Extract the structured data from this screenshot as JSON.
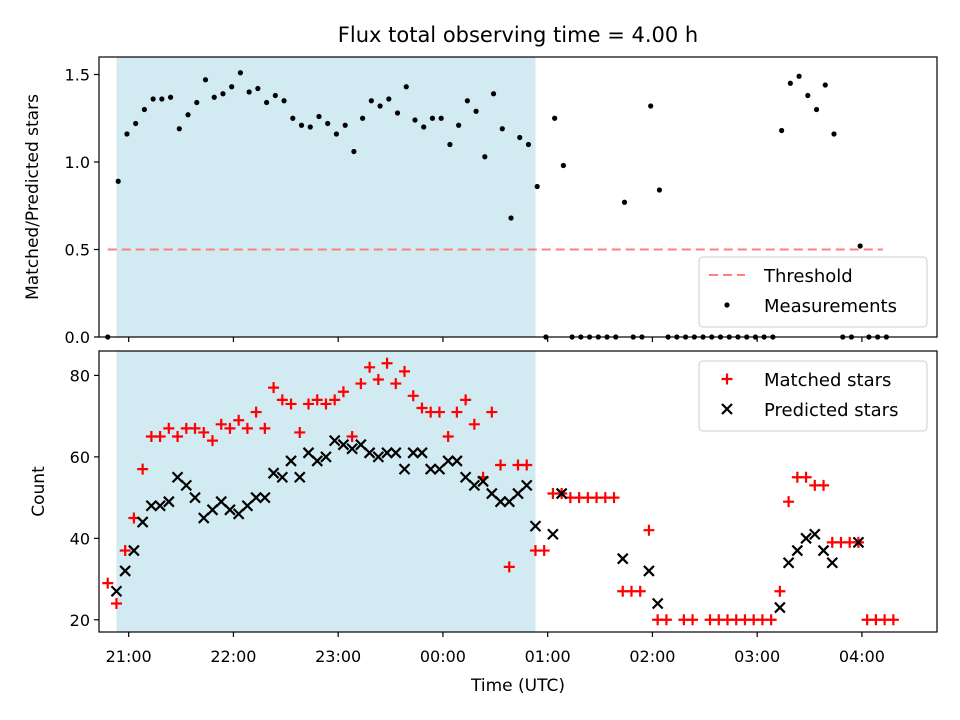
{
  "chart_data": [
    {
      "type": "scatter",
      "title": "Flux total observing time = 4.00 h",
      "xlabel": "",
      "ylabel": "Matched/Predicted stars",
      "ylim": [
        0,
        1.6
      ],
      "yticks": [
        "0.0",
        "0.5",
        "1.0",
        "1.5"
      ],
      "xlim": [
        "20:43",
        "04:43"
      ],
      "shaded_interval": [
        "20:53",
        "00:53"
      ],
      "shade_color": "#add8e6",
      "threshold": {
        "name": "Threshold",
        "value": 0.5,
        "color": "#ff7f7f",
        "x_start": "20:48",
        "x_end": "04:12"
      },
      "legend": {
        "location": "lower right",
        "entries": [
          "Threshold",
          "Measurements"
        ]
      },
      "series": [
        {
          "name": "Measurements",
          "marker": "dot",
          "color": "#000000",
          "points": [
            [
              "20:48",
              0.0
            ],
            [
              "20:54",
              0.89
            ],
            [
              "20:59",
              1.16
            ],
            [
              "21:04",
              1.22
            ],
            [
              "21:09",
              1.3
            ],
            [
              "21:14",
              1.36
            ],
            [
              "21:19",
              1.36
            ],
            [
              "21:24",
              1.37
            ],
            [
              "21:29",
              1.19
            ],
            [
              "21:34",
              1.27
            ],
            [
              "21:39",
              1.34
            ],
            [
              "21:44",
              1.47
            ],
            [
              "21:49",
              1.37
            ],
            [
              "21:54",
              1.39
            ],
            [
              "21:59",
              1.43
            ],
            [
              "22:04",
              1.51
            ],
            [
              "22:09",
              1.4
            ],
            [
              "22:14",
              1.42
            ],
            [
              "22:19",
              1.34
            ],
            [
              "22:24",
              1.38
            ],
            [
              "22:29",
              1.35
            ],
            [
              "22:34",
              1.25
            ],
            [
              "22:39",
              1.21
            ],
            [
              "22:44",
              1.2
            ],
            [
              "22:49",
              1.26
            ],
            [
              "22:54",
              1.22
            ],
            [
              "22:59",
              1.16
            ],
            [
              "23:04",
              1.21
            ],
            [
              "23:09",
              1.06
            ],
            [
              "23:14",
              1.25
            ],
            [
              "23:19",
              1.35
            ],
            [
              "23:24",
              1.32
            ],
            [
              "23:29",
              1.36
            ],
            [
              "23:34",
              1.28
            ],
            [
              "23:39",
              1.43
            ],
            [
              "23:44",
              1.24
            ],
            [
              "23:49",
              1.2
            ],
            [
              "23:54",
              1.25
            ],
            [
              "23:59",
              1.25
            ],
            [
              "00:04",
              1.1
            ],
            [
              "00:09",
              1.21
            ],
            [
              "00:14",
              1.35
            ],
            [
              "00:19",
              1.29
            ],
            [
              "00:24",
              1.03
            ],
            [
              "00:29",
              1.39
            ],
            [
              "00:34",
              1.19
            ],
            [
              "00:39",
              0.68
            ],
            [
              "00:44",
              1.14
            ],
            [
              "00:49",
              1.1
            ],
            [
              "00:54",
              0.86
            ],
            [
              "00:59",
              0.0
            ],
            [
              "01:04",
              1.25
            ],
            [
              "01:09",
              0.98
            ],
            [
              "01:14",
              0.0
            ],
            [
              "01:19",
              0.0
            ],
            [
              "01:24",
              0.0
            ],
            [
              "01:29",
              0.0
            ],
            [
              "01:34",
              0.0
            ],
            [
              "01:39",
              0.0
            ],
            [
              "01:44",
              0.77
            ],
            [
              "01:49",
              0.0
            ],
            [
              "01:54",
              0.0
            ],
            [
              "01:59",
              1.32
            ],
            [
              "02:04",
              0.84
            ],
            [
              "02:09",
              0.0
            ],
            [
              "02:14",
              0.0
            ],
            [
              "02:19",
              0.0
            ],
            [
              "02:24",
              0.0
            ],
            [
              "02:29",
              0.0
            ],
            [
              "02:34",
              0.0
            ],
            [
              "02:39",
              0.0
            ],
            [
              "02:44",
              0.0
            ],
            [
              "02:49",
              0.0
            ],
            [
              "02:54",
              0.0
            ],
            [
              "02:59",
              0.0
            ],
            [
              "03:04",
              0.0
            ],
            [
              "03:09",
              0.0
            ],
            [
              "03:14",
              1.18
            ],
            [
              "03:19",
              1.45
            ],
            [
              "03:24",
              1.49
            ],
            [
              "03:29",
              1.38
            ],
            [
              "03:34",
              1.3
            ],
            [
              "03:39",
              1.44
            ],
            [
              "03:44",
              1.16
            ],
            [
              "03:49",
              0.0
            ],
            [
              "03:54",
              0.0
            ],
            [
              "03:59",
              0.52
            ],
            [
              "04:04",
              0.0
            ],
            [
              "04:09",
              0.0
            ],
            [
              "04:14",
              0.0
            ]
          ]
        }
      ]
    },
    {
      "type": "scatter",
      "title": "",
      "xlabel": "Time (UTC)",
      "ylabel": "Count",
      "ylim": [
        17,
        86
      ],
      "yticks": [
        "20",
        "40",
        "60",
        "80"
      ],
      "xlim": [
        "20:43",
        "04:43"
      ],
      "xticks": [
        "21:00",
        "22:00",
        "23:00",
        "00:00",
        "01:00",
        "02:00",
        "03:00",
        "04:00"
      ],
      "shaded_interval": [
        "20:53",
        "00:53"
      ],
      "shade_color": "#add8e6",
      "legend": {
        "location": "upper right",
        "entries": [
          "Matched stars",
          "Predicted stars"
        ]
      },
      "series": [
        {
          "name": "Matched stars",
          "marker": "plus",
          "color": "#ff0000",
          "points": [
            [
              "20:48",
              29
            ],
            [
              "20:53",
              24
            ],
            [
              "20:58",
              37
            ],
            [
              "21:03",
              45
            ],
            [
              "21:08",
              57
            ],
            [
              "21:13",
              65
            ],
            [
              "21:18",
              65
            ],
            [
              "21:23",
              67
            ],
            [
              "21:28",
              65
            ],
            [
              "21:33",
              67
            ],
            [
              "21:38",
              67
            ],
            [
              "21:43",
              66
            ],
            [
              "21:48",
              64
            ],
            [
              "21:53",
              68
            ],
            [
              "21:58",
              67
            ],
            [
              "22:03",
              69
            ],
            [
              "22:08",
              67
            ],
            [
              "22:13",
              71
            ],
            [
              "22:18",
              67
            ],
            [
              "22:23",
              77
            ],
            [
              "22:28",
              74
            ],
            [
              "22:33",
              73
            ],
            [
              "22:38",
              66
            ],
            [
              "22:43",
              73
            ],
            [
              "22:48",
              74
            ],
            [
              "22:53",
              73
            ],
            [
              "22:58",
              74
            ],
            [
              "23:03",
              76
            ],
            [
              "23:08",
              65
            ],
            [
              "23:13",
              78
            ],
            [
              "23:18",
              82
            ],
            [
              "23:23",
              79
            ],
            [
              "23:28",
              83
            ],
            [
              "23:33",
              78
            ],
            [
              "23:38",
              81
            ],
            [
              "23:43",
              75
            ],
            [
              "23:48",
              72
            ],
            [
              "23:53",
              71
            ],
            [
              "23:58",
              71
            ],
            [
              "00:03",
              65
            ],
            [
              "00:08",
              71
            ],
            [
              "00:13",
              74
            ],
            [
              "00:18",
              68
            ],
            [
              "00:23",
              55
            ],
            [
              "00:28",
              71
            ],
            [
              "00:33",
              58
            ],
            [
              "00:38",
              33
            ],
            [
              "00:43",
              58
            ],
            [
              "00:48",
              58
            ],
            [
              "00:53",
              37
            ],
            [
              "00:58",
              37
            ],
            [
              "01:03",
              51
            ],
            [
              "01:08",
              51
            ],
            [
              "01:13",
              50
            ],
            [
              "01:18",
              50
            ],
            [
              "01:23",
              50
            ],
            [
              "01:28",
              50
            ],
            [
              "01:33",
              50
            ],
            [
              "01:38",
              50
            ],
            [
              "01:43",
              27
            ],
            [
              "01:48",
              27
            ],
            [
              "01:53",
              27
            ],
            [
              "01:58",
              42
            ],
            [
              "02:03",
              20
            ],
            [
              "02:08",
              20
            ],
            [
              "02:18",
              20
            ],
            [
              "02:23",
              20
            ],
            [
              "02:33",
              20
            ],
            [
              "02:38",
              20
            ],
            [
              "02:43",
              20
            ],
            [
              "02:48",
              20
            ],
            [
              "02:53",
              20
            ],
            [
              "02:58",
              20
            ],
            [
              "03:03",
              20
            ],
            [
              "03:08",
              20
            ],
            [
              "03:13",
              27
            ],
            [
              "03:18",
              49
            ],
            [
              "03:23",
              55
            ],
            [
              "03:28",
              55
            ],
            [
              "03:33",
              53
            ],
            [
              "03:38",
              53
            ],
            [
              "03:43",
              39
            ],
            [
              "03:48",
              39
            ],
            [
              "03:53",
              39
            ],
            [
              "03:58",
              39
            ],
            [
              "04:03",
              20
            ],
            [
              "04:08",
              20
            ],
            [
              "04:13",
              20
            ],
            [
              "04:18",
              20
            ]
          ]
        },
        {
          "name": "Predicted stars",
          "marker": "x",
          "color": "#000000",
          "points": [
            [
              "20:53",
              27
            ],
            [
              "20:58",
              32
            ],
            [
              "21:03",
              37
            ],
            [
              "21:08",
              44
            ],
            [
              "21:13",
              48
            ],
            [
              "21:18",
              48
            ],
            [
              "21:23",
              49
            ],
            [
              "21:28",
              55
            ],
            [
              "21:33",
              53
            ],
            [
              "21:38",
              50
            ],
            [
              "21:43",
              45
            ],
            [
              "21:48",
              47
            ],
            [
              "21:53",
              49
            ],
            [
              "21:58",
              47
            ],
            [
              "22:03",
              46
            ],
            [
              "22:08",
              48
            ],
            [
              "22:13",
              50
            ],
            [
              "22:18",
              50
            ],
            [
              "22:23",
              56
            ],
            [
              "22:28",
              55
            ],
            [
              "22:33",
              59
            ],
            [
              "22:38",
              55
            ],
            [
              "22:43",
              61
            ],
            [
              "22:48",
              59
            ],
            [
              "22:53",
              60
            ],
            [
              "22:58",
              64
            ],
            [
              "23:03",
              63
            ],
            [
              "23:08",
              62
            ],
            [
              "23:13",
              63
            ],
            [
              "23:18",
              61
            ],
            [
              "23:23",
              60
            ],
            [
              "23:28",
              61
            ],
            [
              "23:33",
              61
            ],
            [
              "23:38",
              57
            ],
            [
              "23:43",
              61
            ],
            [
              "23:48",
              61
            ],
            [
              "23:53",
              57
            ],
            [
              "23:58",
              57
            ],
            [
              "00:03",
              59
            ],
            [
              "00:08",
              59
            ],
            [
              "00:13",
              55
            ],
            [
              "00:18",
              53
            ],
            [
              "00:23",
              54
            ],
            [
              "00:28",
              51
            ],
            [
              "00:33",
              49
            ],
            [
              "00:38",
              49
            ],
            [
              "00:43",
              51
            ],
            [
              "00:48",
              53
            ],
            [
              "00:53",
              43
            ],
            [
              "01:03",
              41
            ],
            [
              "01:08",
              51
            ],
            [
              "01:43",
              35
            ],
            [
              "01:58",
              32
            ],
            [
              "02:03",
              24
            ],
            [
              "03:13",
              23
            ],
            [
              "03:18",
              34
            ],
            [
              "03:23",
              37
            ],
            [
              "03:28",
              40
            ],
            [
              "03:33",
              41
            ],
            [
              "03:38",
              37
            ],
            [
              "03:43",
              34
            ],
            [
              "03:58",
              39
            ]
          ]
        }
      ]
    }
  ]
}
